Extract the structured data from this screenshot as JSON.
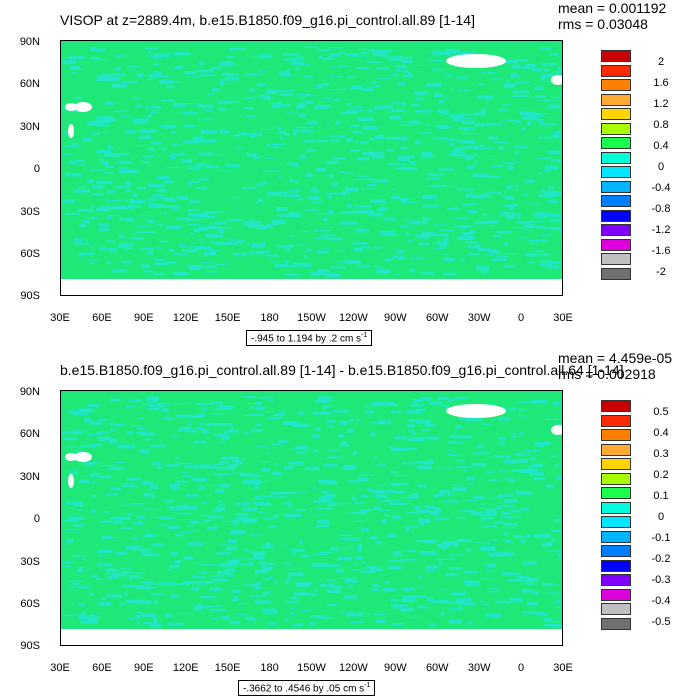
{
  "panels": [
    {
      "title": "VISOP at z=2889.4m, b.e15.B1850.f09_g16.pi_control.all.89 [1-14]",
      "mean_label": "mean = 0.001192",
      "rms_label": "rms = 0.03048",
      "range_label": "-.945 to 1.194 by .2 cm s",
      "range_unit_exp": "-1",
      "legend_labels": [
        "2",
        "1.6",
        "1.2",
        "0.8",
        "0.4",
        "0",
        "-0.4",
        "-0.8",
        "-1.2",
        "-1.6",
        "-2"
      ]
    },
    {
      "title": "b.e15.B1850.f09_g16.pi_control.all.89 [1-14] - b.e15.B1850.f09_g16.pi_control.all.64 [1-14]",
      "mean_label": "mean = 4.459e-05",
      "rms_label": "rms = 0.002918",
      "range_label": "-.3662 to .4546 by .05 cm s",
      "range_unit_exp": "-1",
      "legend_labels": [
        "0.5",
        "0.4",
        "0.3",
        "0.2",
        "0.1",
        "0",
        "-0.1",
        "-0.2",
        "-0.3",
        "-0.4",
        "-0.5"
      ]
    }
  ],
  "lat_labels": [
    "90N",
    "60N",
    "30N",
    "0",
    "30S",
    "60S",
    "90S"
  ],
  "lon_labels": [
    "30E",
    "60E",
    "90E",
    "120E",
    "150E",
    "180",
    "150W",
    "120W",
    "90W",
    "60W",
    "30W",
    "0",
    "30E"
  ],
  "legend_colors": [
    "#c80000",
    "#ff2a00",
    "#ff7f00",
    "#ffaa33",
    "#ffd400",
    "#aaff00",
    "#19ff4b",
    "#00ffd9",
    "#00e5ff",
    "#00b4ff",
    "#007fff",
    "#0000ff",
    "#7f00ff",
    "#dd00dd",
    "#c0c0c0",
    "#707070"
  ],
  "colors": {
    "field": "#1ee878",
    "speckle": "#22e6c8",
    "land_mask": "#ffffff"
  }
}
